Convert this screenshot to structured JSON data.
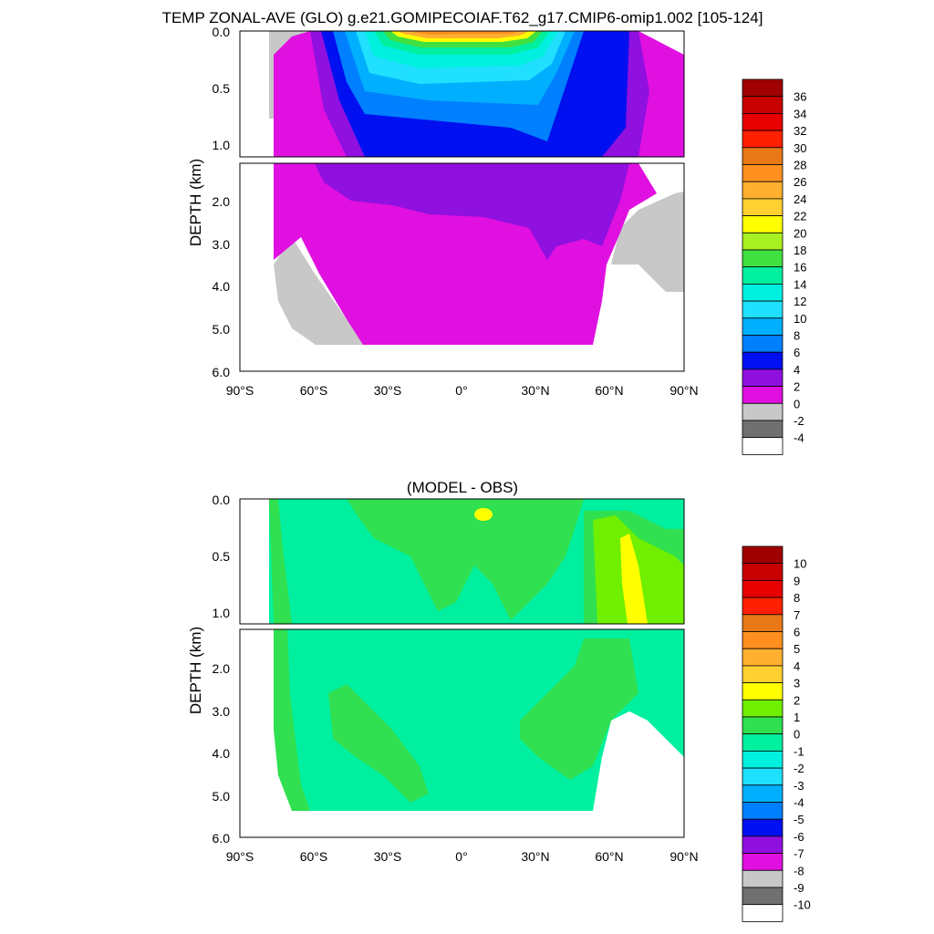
{
  "title": "TEMP ZONAL-AVE (GLO) g.e21.GOMIPECOIAF.T62_g17.CMIP6-omip1.002 [105-124]",
  "chart_data": [
    {
      "type": "heatmap",
      "title": "TEMP ZONAL-AVE (GLO) g.e21.GOMIPECOIAF.T62_g17.CMIP6-omip1.002 [105-124]",
      "xlabel": "",
      "ylabel": "DEPTH (km)",
      "xlim": [
        -90,
        90
      ],
      "ylim": [
        6.0,
        0.0
      ],
      "x_ticks": [
        "90°S",
        "60°S",
        "30°S",
        "0°",
        "30°N",
        "60°N",
        "90°N"
      ],
      "y_ticks_upper": [
        "0.0",
        "0.5",
        "1.0"
      ],
      "y_ticks_lower": [
        "2.0",
        "3.0",
        "4.0",
        "5.0",
        "6.0"
      ],
      "depth_break_km": 1.2,
      "colorbar": {
        "labels": [
          "36",
          "34",
          "32",
          "30",
          "28",
          "26",
          "24",
          "22",
          "20",
          "18",
          "16",
          "14",
          "12",
          "10",
          "8",
          "6",
          "4",
          "2",
          "0",
          "-2",
          "-4"
        ],
        "colors": [
          "#a00000",
          "#c80000",
          "#e60000",
          "#ff2000",
          "#e87818",
          "#ff9020",
          "#ffb030",
          "#ffd030",
          "#ffff00",
          "#a8f020",
          "#40e040",
          "#00f0a0",
          "#00f0e0",
          "#20e0ff",
          "#00b0ff",
          "#0080ff",
          "#0010f0",
          "#9010e0",
          "#e010e0",
          "#c8c8c8",
          "#707070",
          "#ffffff"
        ]
      },
      "description_values": {
        "surface_equator_max": 28,
        "southern_ocean_surface": 0,
        "deep_ocean": 1
      }
    },
    {
      "type": "heatmap",
      "title": "(MODEL - OBS)",
      "xlabel": "",
      "ylabel": "DEPTH (km)",
      "xlim": [
        -90,
        90
      ],
      "ylim": [
        6.0,
        0.0
      ],
      "x_ticks": [
        "90°S",
        "60°S",
        "30°S",
        "0°",
        "30°N",
        "60°N",
        "90°N"
      ],
      "y_ticks_upper": [
        "0.0",
        "0.5",
        "1.0"
      ],
      "y_ticks_lower": [
        "2.0",
        "3.0",
        "4.0",
        "5.0",
        "6.0"
      ],
      "depth_break_km": 1.2,
      "colorbar": {
        "labels": [
          "10",
          "9",
          "8",
          "7",
          "6",
          "5",
          "4",
          "3",
          "2",
          "1",
          "0",
          "-1",
          "-2",
          "-3",
          "-4",
          "-5",
          "-6",
          "-7",
          "-8",
          "-9",
          "-10"
        ],
        "colors": [
          "#a00000",
          "#c80000",
          "#e60000",
          "#ff2000",
          "#e87818",
          "#ff9020",
          "#ffb030",
          "#ffd030",
          "#ffff00",
          "#70f000",
          "#30e050",
          "#00f0a0",
          "#00f0e0",
          "#20e0ff",
          "#00b0ff",
          "#0080ff",
          "#0010f0",
          "#9010e0",
          "#e010e0",
          "#c8c8c8",
          "#707070",
          "#ffffff"
        ]
      }
    }
  ]
}
